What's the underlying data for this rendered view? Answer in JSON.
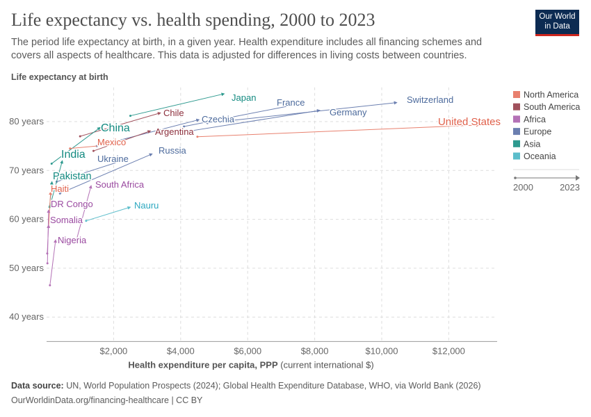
{
  "header": {
    "title": "Life expectancy vs. health spending, 2000 to 2023",
    "subtitle": "The period life expectancy at birth, in a given year. Health expenditure includes all financing schemes and covers all aspects of healthcare. This data is adjusted for differences in living costs between countries.",
    "logo": "Our World in Data"
  },
  "footer": {
    "source_label": "Data source:",
    "source": "UN, World Population Prospects (2024); Global Health Expenditure Database, WHO, via World Bank (2026)",
    "url": "OurWorldinData.org/financing-healthcare | CC BY"
  },
  "chart_data": {
    "type": "scatter",
    "subtype": "connected arrows (start year to end year)",
    "title": "Life expectancy vs. health spending, 2000 to 2023",
    "ylabel": "Life expectancy at birth",
    "xlabel": "Health expenditure per capita, PPP",
    "xlabel_unit": "(current international $)",
    "xlim": [
      0,
      13500
    ],
    "ylim": [
      35,
      87
    ],
    "x_ticks": [
      {
        "v": 2000,
        "label": "$2,000"
      },
      {
        "v": 4000,
        "label": "$4,000"
      },
      {
        "v": 6000,
        "label": "$6,000"
      },
      {
        "v": 8000,
        "label": "$8,000"
      },
      {
        "v": 10000,
        "label": "$10,000"
      },
      {
        "v": 12000,
        "label": "$12,000"
      }
    ],
    "y_ticks": [
      {
        "v": 40,
        "label": "40 years"
      },
      {
        "v": 50,
        "label": "50 years"
      },
      {
        "v": 60,
        "label": "60 years"
      },
      {
        "v": 70,
        "label": "70 years"
      },
      {
        "v": 80,
        "label": "80 years"
      }
    ],
    "grid": true,
    "legend_placement": "right",
    "legend": [
      {
        "name": "North America",
        "color": "#E8806E"
      },
      {
        "name": "South America",
        "color": "#A0515C"
      },
      {
        "name": "Africa",
        "color": "#B472B6"
      },
      {
        "name": "Europe",
        "color": "#6B7FB0"
      },
      {
        "name": "Asia",
        "color": "#2E9A8F"
      },
      {
        "name": "Oceania",
        "color": "#5CBDCB"
      }
    ],
    "time_legend": {
      "start": "2000",
      "end": "2023"
    },
    "series": [
      {
        "name": "United States",
        "region": "North America",
        "start": [
          4500,
          76.9
        ],
        "end": [
          12900,
          79.3
        ]
      },
      {
        "name": "Switzerland",
        "region": "Europe",
        "start": [
          4800,
          79.7
        ],
        "end": [
          10450,
          83.9
        ]
      },
      {
        "name": "Germany",
        "region": "Europe",
        "start": [
          4200,
          78.0
        ],
        "end": [
          8150,
          82.3
        ]
      },
      {
        "name": "France",
        "region": "Europe",
        "start": [
          4100,
          79.0
        ],
        "end": [
          7600,
          83.7
        ]
      },
      {
        "name": "Japan",
        "region": "Asia",
        "start": [
          2500,
          81.2
        ],
        "end": [
          5300,
          85.7
        ]
      },
      {
        "name": "Czechia",
        "region": "Europe",
        "start": [
          1500,
          75.0
        ],
        "end": [
          4550,
          80.4
        ]
      },
      {
        "name": "Chile",
        "region": "South America",
        "start": [
          1000,
          77.0
        ],
        "end": [
          3400,
          81.8
        ]
      },
      {
        "name": "China",
        "region": "Asia",
        "start": [
          150,
          71.4
        ],
        "end": [
          1600,
          78.8
        ]
      },
      {
        "name": "Argentina",
        "region": "South America",
        "start": [
          1400,
          74.0
        ],
        "end": [
          3100,
          78.1
        ]
      },
      {
        "name": "Mexico",
        "region": "North America",
        "start": [
          700,
          74.5
        ],
        "end": [
          2250,
          75.5
        ]
      },
      {
        "name": "Russia",
        "region": "Europe",
        "start": [
          400,
          65.3
        ],
        "end": [
          3150,
          73.4
        ]
      },
      {
        "name": "Ukraine",
        "region": "Europe",
        "start": [
          300,
          67.7
        ],
        "end": [
          2300,
          72.1
        ]
      },
      {
        "name": "India",
        "region": "Asia",
        "start": [
          100,
          62.7
        ],
        "end": [
          470,
          72.0
        ]
      },
      {
        "name": "South Africa",
        "region": "Africa",
        "start": [
          900,
          56.0
        ],
        "end": [
          1330,
          66.9
        ]
      },
      {
        "name": "Pakistan",
        "region": "Asia",
        "start": [
          90,
          62.5
        ],
        "end": [
          160,
          67.7
        ]
      },
      {
        "name": "Haiti",
        "region": "North America",
        "start": [
          60,
          58.5
        ],
        "end": [
          120,
          65.6
        ]
      },
      {
        "name": "DR Congo",
        "region": "Africa",
        "start": [
          25,
          51.0
        ],
        "end": [
          60,
          61.9
        ]
      },
      {
        "name": "Nauru",
        "region": "Oceania",
        "start": [
          1180,
          59.7
        ],
        "end": [
          2500,
          62.5
        ]
      },
      {
        "name": "Somalia",
        "region": "Africa",
        "start": [
          20,
          53.0
        ],
        "end": [
          60,
          58.8
        ]
      },
      {
        "name": "Nigeria",
        "region": "Africa",
        "start": [
          100,
          46.5
        ],
        "end": [
          270,
          55.8
        ]
      }
    ]
  }
}
